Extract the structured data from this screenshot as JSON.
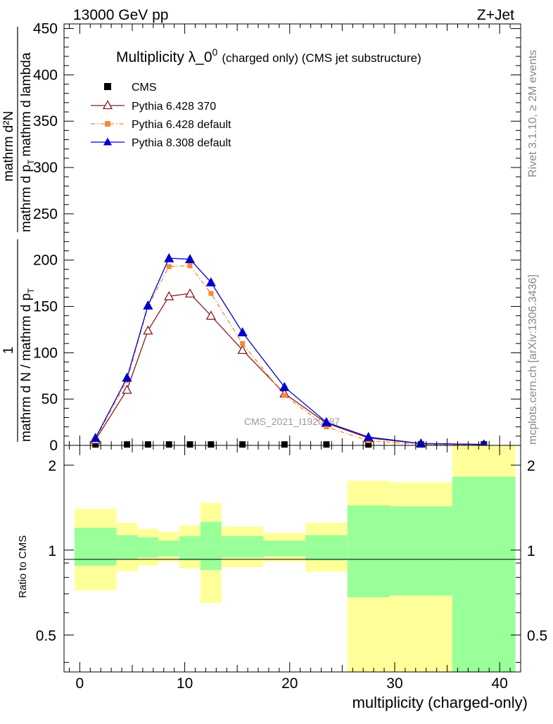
{
  "header": {
    "energy_label": "13000 GeV pp",
    "process_label": "Z+Jet",
    "rivet_label": "Rivet 3.1.10, ≥ 2M events",
    "mcplots_label": "mcplots.cern.ch [arXiv:1306.3436]"
  },
  "chart_data": [
    {
      "type": "line",
      "title": "Multiplicity λ_0",
      "title_superscript": "0",
      "subtitle": "(charged only) (CMS jet substructure)",
      "watermark": "CMS_2021_I1920187",
      "ylabel_numerator": "mathrm d²N",
      "ylabel_denominator_1": "mathrm d p",
      "ylabel_denominator_1_sub": "T",
      "ylabel_denominator_2": "mathrm d lambda",
      "ylabel_prefix_numerator": "1",
      "ylabel_prefix_denominator_a": "mathrm d N / mathrm d p",
      "ylabel_prefix_denominator_a_sub": "T",
      "ylabel_prefix_denominator_b": "mathrm d p",
      "ylabel_prefix_denominator_b_sub": "T",
      "xlabel": "",
      "xlim": [
        -1.5,
        42
      ],
      "ylim": [
        0,
        455
      ],
      "y_ticks": [
        0,
        50,
        100,
        150,
        200,
        250,
        300,
        350,
        400,
        450
      ],
      "y_tick_labels": [
        "0",
        "50",
        "100",
        "150",
        "200",
        "250",
        "300",
        "350",
        "400",
        "450"
      ],
      "legend_position": "top-left",
      "x": [
        1.5,
        4.5,
        6.5,
        8.5,
        10.5,
        12.5,
        15.5,
        19.5,
        23.5,
        27.5,
        32.5,
        38.5
      ],
      "series": [
        {
          "name": "CMS",
          "color": "#000000",
          "marker": "square-filled",
          "line": "none",
          "values": [
            1,
            1,
            1,
            1,
            1,
            1,
            1,
            1,
            1,
            1,
            1,
            1
          ]
        },
        {
          "name": "Pythia 6.428 370",
          "color": "#8b1a1a",
          "marker": "triangle-open",
          "line": "solid",
          "values": [
            6,
            60,
            124,
            161,
            164,
            140,
            103,
            56,
            24,
            8,
            2,
            1
          ]
        },
        {
          "name": "Pythia 6.428 default",
          "color": "#f5883a",
          "marker": "square-filled",
          "line": "dashdot",
          "values": [
            7,
            70,
            150,
            193,
            194,
            164,
            110,
            54,
            20,
            5,
            1,
            0
          ]
        },
        {
          "name": "Pythia 8.308 default",
          "color": "#0000cc",
          "marker": "triangle-filled",
          "line": "solid",
          "values": [
            8,
            73,
            151,
            202,
            201,
            176,
            122,
            63,
            25,
            9,
            2,
            1
          ]
        }
      ]
    },
    {
      "type": "area",
      "title": "",
      "ylabel": "Ratio to CMS",
      "xlabel": "multiplicity (charged-only)",
      "xlim": [
        -1.5,
        42
      ],
      "ylim": [
        0.37,
        2.35
      ],
      "y_ticks": [
        0.5,
        1,
        2
      ],
      "y_tick_labels": [
        "0.5",
        "1",
        "2"
      ],
      "x_ticks": [
        0,
        10,
        20,
        30,
        40
      ],
      "x_tick_labels": [
        "0",
        "10",
        "20",
        "30",
        "40"
      ],
      "reference_line": 1,
      "bins": [
        {
          "lo": -0.5,
          "hi": 3.5,
          "stat_lo": 0.88,
          "stat_hi": 1.2,
          "tot_lo": 0.72,
          "tot_hi": 1.4
        },
        {
          "lo": 3.5,
          "hi": 5.5,
          "stat_lo": 0.93,
          "stat_hi": 1.13,
          "tot_lo": 0.84,
          "tot_hi": 1.25
        },
        {
          "lo": 5.5,
          "hi": 7.5,
          "stat_lo": 0.94,
          "stat_hi": 1.11,
          "tot_lo": 0.88,
          "tot_hi": 1.19
        },
        {
          "lo": 7.5,
          "hi": 9.5,
          "stat_lo": 0.95,
          "stat_hi": 1.08,
          "tot_lo": 0.91,
          "tot_hi": 1.16
        },
        {
          "lo": 9.5,
          "hi": 11.5,
          "stat_lo": 0.92,
          "stat_hi": 1.12,
          "tot_lo": 0.86,
          "tot_hi": 1.22
        },
        {
          "lo": 11.5,
          "hi": 13.5,
          "stat_lo": 0.85,
          "stat_hi": 1.26,
          "tot_lo": 0.65,
          "tot_hi": 1.47
        },
        {
          "lo": 13.5,
          "hi": 17.5,
          "stat_lo": 0.94,
          "stat_hi": 1.12,
          "tot_lo": 0.87,
          "tot_hi": 1.21
        },
        {
          "lo": 17.5,
          "hi": 21.5,
          "stat_lo": 0.95,
          "stat_hi": 1.08,
          "tot_lo": 0.91,
          "tot_hi": 1.15
        },
        {
          "lo": 21.5,
          "hi": 25.5,
          "stat_lo": 0.92,
          "stat_hi": 1.13,
          "tot_lo": 0.84,
          "tot_hi": 1.25
        },
        {
          "lo": 25.5,
          "hi": 29.5,
          "stat_lo": 0.68,
          "stat_hi": 1.44,
          "tot_lo": 0.37,
          "tot_hi": 1.76
        },
        {
          "lo": 29.5,
          "hi": 35.5,
          "stat_lo": 0.69,
          "stat_hi": 1.43,
          "tot_lo": 0.37,
          "tot_hi": 1.74
        },
        {
          "lo": 35.5,
          "hi": 41.5,
          "stat_lo": 0.37,
          "stat_hi": 1.82,
          "tot_lo": 0.37,
          "tot_hi": 2.35
        }
      ],
      "colors": {
        "stat": "#99ff99",
        "total": "#ffff99"
      }
    }
  ]
}
